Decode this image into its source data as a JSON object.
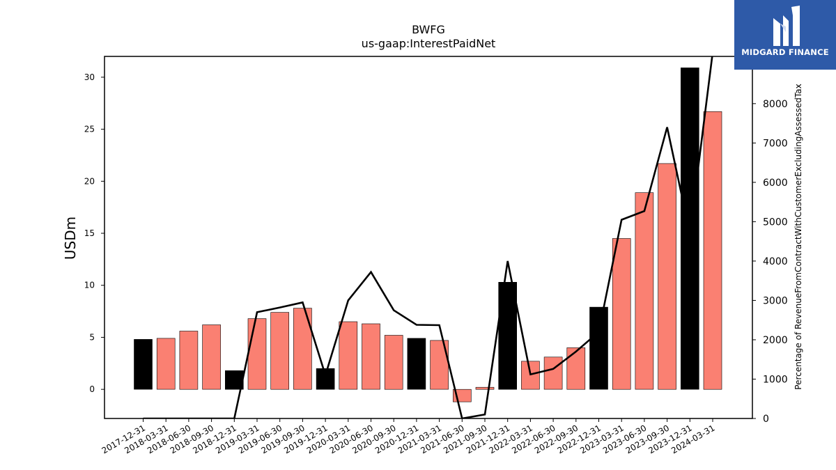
{
  "chart_data": {
    "type": "bar",
    "title": "BWFG",
    "subtitle": "us-gaap:InterestPaidNet",
    "ylabel": "USDm",
    "y2label": "Percentage of RevenueFromContractWithCustomerExcludingAssessedTax",
    "ylim": [
      -2.8,
      32.0
    ],
    "y2lim": [
      0,
      9200
    ],
    "yticks": [
      0,
      5,
      10,
      15,
      20,
      25,
      30
    ],
    "y2ticks": [
      0,
      1000,
      2000,
      3000,
      4000,
      5000,
      6000,
      7000,
      8000
    ],
    "categories": [
      "2017-12-31",
      "2018-03-31",
      "2018-06-30",
      "2018-09-30",
      "2018-12-31",
      "2019-03-31",
      "2019-06-30",
      "2019-09-30",
      "2019-12-31",
      "2020-03-31",
      "2020-06-30",
      "2020-09-30",
      "2020-12-31",
      "2021-03-31",
      "2021-06-30",
      "2021-09-30",
      "2021-12-31",
      "2022-03-31",
      "2022-06-30",
      "2022-09-30",
      "2022-12-31",
      "2023-03-31",
      "2023-06-30",
      "2023-09-30",
      "2023-12-31",
      "2024-03-31"
    ],
    "series": [
      {
        "kind": "bar",
        "values": [
          4.8,
          4.9,
          5.6,
          6.2,
          1.8,
          6.8,
          7.4,
          7.8,
          2.0,
          6.5,
          6.3,
          5.2,
          4.9,
          4.7,
          -1.2,
          0.2,
          10.3,
          2.7,
          3.1,
          4.0,
          7.9,
          14.5,
          18.9,
          21.7,
          30.9,
          26.7
        ],
        "annual": [
          true,
          false,
          false,
          false,
          true,
          false,
          false,
          false,
          true,
          false,
          false,
          false,
          true,
          false,
          false,
          false,
          true,
          false,
          false,
          false,
          true,
          false,
          false,
          false,
          true,
          false
        ],
        "color_annual": "#000000",
        "color_quarter": "#fa8072"
      },
      {
        "kind": "line",
        "axis": "right",
        "values": [
          0,
          0,
          0,
          0,
          0,
          2700,
          2820,
          2950,
          1100,
          3000,
          3720,
          2750,
          2380,
          2370,
          0,
          100,
          4000,
          1120,
          1260,
          1700,
          2200,
          5050,
          5270,
          7400,
          4700,
          9300
        ],
        "color": "#000000"
      }
    ]
  },
  "logo": {
    "text": "MIDGARD FINANCE",
    "bg": "#2e5aa8"
  }
}
